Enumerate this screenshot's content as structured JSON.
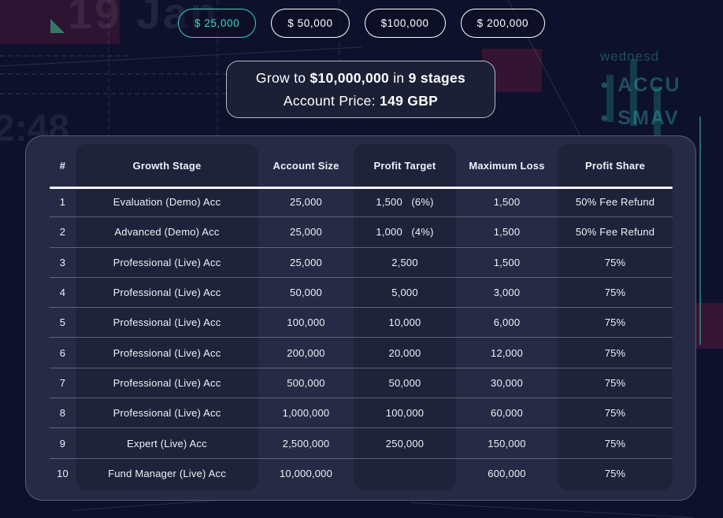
{
  "colors": {
    "accent_teal": "#3ad6c6",
    "page_bg": "#0d112b",
    "card_bg": "#262a44",
    "band_bg": "#1f2339"
  },
  "filters": {
    "options": [
      {
        "label": "$ 25,000",
        "selected": true
      },
      {
        "label": "$ 50,000",
        "selected": false
      },
      {
        "label": "$100,000",
        "selected": false
      },
      {
        "label": "$ 200,000",
        "selected": false
      }
    ]
  },
  "banner": {
    "line1": {
      "prefix": "Grow to ",
      "amount": "$10,000,000",
      "middle": " in ",
      "stages": "9 stages"
    },
    "line2": {
      "label": "Account Price: ",
      "value": "149 GBP"
    }
  },
  "table": {
    "headers": [
      "#",
      "Growth Stage",
      "Account Size",
      "Profit Target",
      "Maximum Loss",
      "Profit Share"
    ],
    "rows": [
      [
        "1",
        "Evaluation (Demo) Acc",
        "25,000",
        "1,500   (6%)",
        "1,500",
        "50% Fee Refund"
      ],
      [
        "2",
        "Advanced (Demo) Acc",
        "25,000",
        "1,000   (4%)",
        "1,500",
        "50% Fee Refund"
      ],
      [
        "3",
        "Professional (Live) Acc",
        "25,000",
        "2,500",
        "1,500",
        "75%"
      ],
      [
        "4",
        "Professional (Live) Acc",
        "50,000",
        "5,000",
        "3,000",
        "75%"
      ],
      [
        "5",
        "Professional (Live) Acc",
        "100,000",
        "10,000",
        "6,000",
        "75%"
      ],
      [
        "6",
        "Professional (Live) Acc",
        "200,000",
        "20,000",
        "12,000",
        "75%"
      ],
      [
        "7",
        "Professional (Live) Acc",
        "500,000",
        "50,000",
        "30,000",
        "75%"
      ],
      [
        "8",
        "Professional (Live) Acc",
        "1,000,000",
        "100,000",
        "60,000",
        "75%"
      ],
      [
        "9",
        "Expert (Live) Acc",
        "2,500,000",
        "250,000",
        "150,000",
        "75%"
      ],
      [
        "10",
        "Fund Manager (Live) Acc",
        "10,000,000",
        "",
        "600,000",
        "75%"
      ]
    ]
  },
  "background": {
    "date_label": "19 Jan",
    "time_label": "2:48",
    "ticker_lines": [
      "wednesd",
      "ACCU",
      "SMAV"
    ],
    "bullet": "●"
  }
}
